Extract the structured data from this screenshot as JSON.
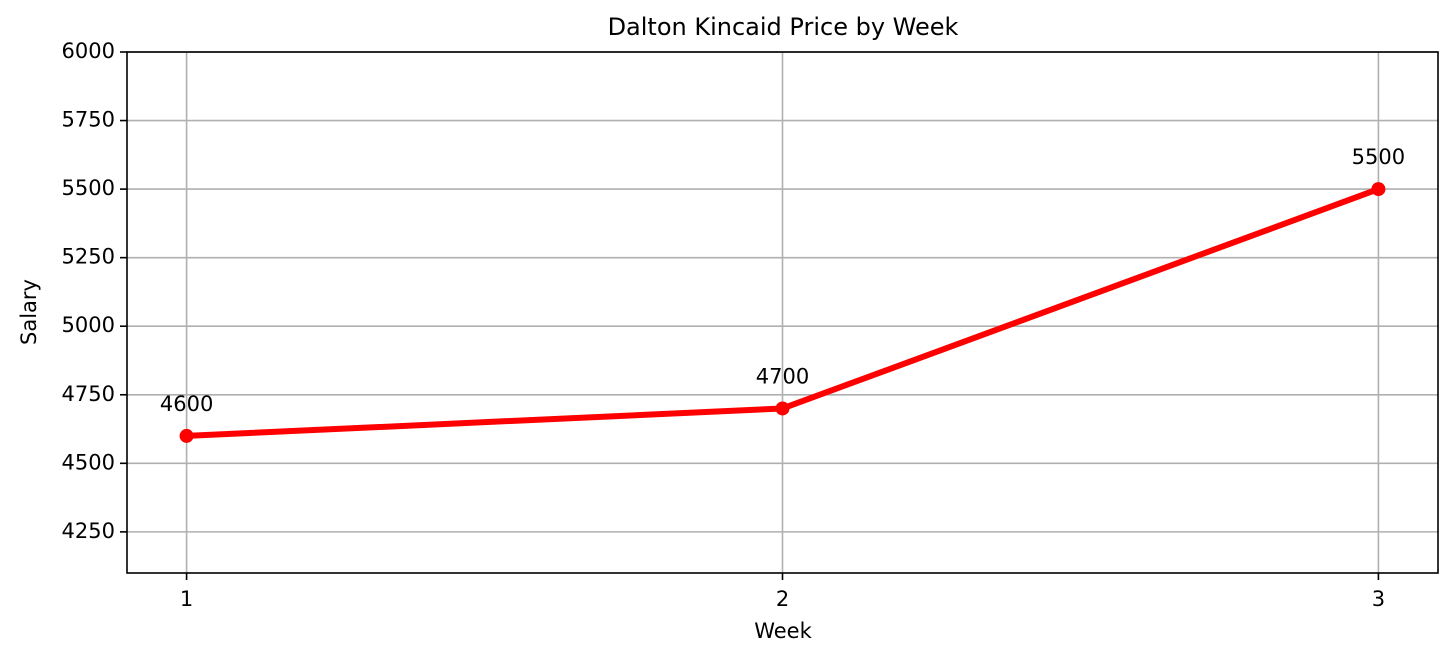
{
  "chart_data": {
    "type": "line",
    "title": "Dalton Kincaid Price by Week",
    "xlabel": "Week",
    "ylabel": "Salary",
    "x": [
      1,
      2,
      3
    ],
    "series": [
      {
        "name": "Dalton Kincaid",
        "color": "#ff0000",
        "values": [
          4600,
          4700,
          5500
        ]
      }
    ],
    "xlim": [
      0.9,
      3.1
    ],
    "xticks": [
      1,
      2,
      3
    ],
    "ylim": [
      4100,
      6000
    ],
    "yticks": [
      4250,
      4500,
      4750,
      5000,
      5250,
      5500,
      5750,
      6000
    ],
    "grid": true
  }
}
